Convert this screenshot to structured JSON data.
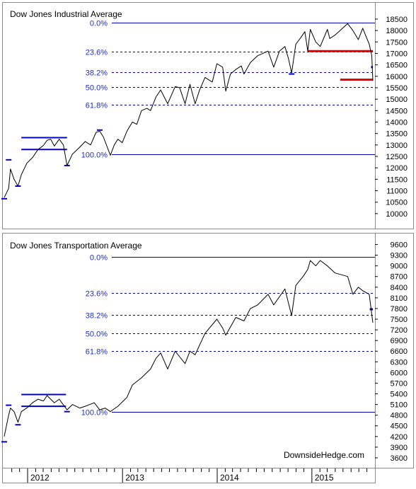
{
  "chart_data": [
    {
      "type": "line",
      "title": "Dow Jones Industrial Average",
      "ylim": [
        9500,
        18900
      ],
      "y_ticks": [
        10000,
        10500,
        11000,
        11500,
        12000,
        12500,
        13000,
        13500,
        14000,
        14500,
        15000,
        15500,
        16000,
        16500,
        17000,
        17500,
        18000,
        18500
      ],
      "grid": false,
      "series": [
        {
          "x": [
            "2011-10-03",
            "2011-10-20",
            "2011-10-27",
            "2011-11-10",
            "2011-11-25",
            "2011-12-08",
            "2011-12-29",
            "2012-01-20",
            "2012-02-10",
            "2012-03-02",
            "2012-03-16",
            "2012-03-30",
            "2012-04-13",
            "2012-05-02",
            "2012-05-18",
            "2012-06-01",
            "2012-06-22",
            "2012-07-20",
            "2012-08-10",
            "2012-08-31",
            "2012-09-21",
            "2012-10-05",
            "2012-10-19",
            "2012-11-15",
            "2012-11-30",
            "2012-12-14",
            "2012-12-31",
            "2013-01-18",
            "2013-02-08",
            "2013-02-25",
            "2013-03-15",
            "2013-04-05",
            "2013-04-19",
            "2013-05-10",
            "2013-05-28",
            "2013-06-24",
            "2013-07-23",
            "2013-08-09",
            "2013-08-30",
            "2013-09-18",
            "2013-10-08",
            "2013-10-25",
            "2013-11-15",
            "2013-12-13",
            "2013-12-31",
            "2014-01-22",
            "2014-02-03",
            "2014-02-21",
            "2014-03-14",
            "2014-04-04",
            "2014-04-14",
            "2014-05-09",
            "2014-06-06",
            "2014-07-16",
            "2014-08-07",
            "2014-08-29",
            "2014-09-19",
            "2014-10-02",
            "2014-10-15",
            "2014-10-31",
            "2014-11-20",
            "2014-12-05",
            "2014-12-16",
            "2014-12-26",
            "2015-01-16",
            "2015-02-02",
            "2015-03-02",
            "2015-03-11",
            "2015-03-31",
            "2015-05-19",
            "2015-06-08",
            "2015-06-29",
            "2015-07-16",
            "2015-08-10",
            "2015-08-20",
            "2015-08-24"
          ],
          "values": [
            10700,
            11100,
            11950,
            11500,
            11200,
            11700,
            12200,
            12450,
            12800,
            12980,
            13200,
            13250,
            12950,
            13250,
            13000,
            12100,
            12600,
            12900,
            13150,
            13000,
            13550,
            13600,
            13350,
            12550,
            13000,
            13250,
            13100,
            13600,
            14000,
            13900,
            14500,
            14600,
            14500,
            15100,
            15400,
            14800,
            15550,
            15500,
            14800,
            15650,
            14800,
            15400,
            15950,
            15750,
            16550,
            16400,
            15350,
            16100,
            16300,
            16450,
            16100,
            16600,
            16900,
            17100,
            16400,
            17100,
            17300,
            16800,
            16150,
            17400,
            17700,
            17950,
            17100,
            18050,
            17500,
            17300,
            18050,
            17650,
            17800,
            18300,
            18000,
            17600,
            18100,
            17400,
            16900,
            15800
          ]
        }
      ],
      "fibonacci": [
        {
          "label": "0.0%",
          "value": 18350
        },
        {
          "label": "23.6%",
          "value": 17070
        },
        {
          "label": "38.2%",
          "value": 16180
        },
        {
          "label": "50.0%",
          "value": 15520
        },
        {
          "label": "61.8%",
          "value": 14770
        },
        {
          "label": "100.0%",
          "value": 12600
        }
      ]
    },
    {
      "type": "line",
      "title": "Dow Jones Transportation Average",
      "ylim": [
        3400,
        9750
      ],
      "y_ticks": [
        3600,
        3900,
        4200,
        4500,
        4800,
        5100,
        5400,
        5700,
        6000,
        6300,
        6600,
        6900,
        7200,
        7500,
        7800,
        8100,
        8400,
        8700,
        9000,
        9300,
        9600
      ],
      "grid": false,
      "series": [
        {
          "x": [
            "2011-10-03",
            "2011-10-20",
            "2011-10-27",
            "2011-11-10",
            "2011-11-25",
            "2011-12-08",
            "2011-12-29",
            "2012-01-20",
            "2012-02-10",
            "2012-03-02",
            "2012-03-16",
            "2012-04-13",
            "2012-05-02",
            "2012-06-01",
            "2012-06-22",
            "2012-07-20",
            "2012-08-10",
            "2012-09-14",
            "2012-10-05",
            "2012-10-26",
            "2012-11-15",
            "2012-12-14",
            "2013-01-18",
            "2013-02-08",
            "2013-03-15",
            "2013-04-19",
            "2013-05-10",
            "2013-05-28",
            "2013-06-24",
            "2013-07-23",
            "2013-08-30",
            "2013-09-18",
            "2013-10-08",
            "2013-11-15",
            "2013-12-31",
            "2014-01-22",
            "2014-02-03",
            "2014-03-14",
            "2014-04-14",
            "2014-05-09",
            "2014-06-06",
            "2014-07-16",
            "2014-08-07",
            "2014-09-19",
            "2014-10-15",
            "2014-10-31",
            "2014-11-28",
            "2014-12-16",
            "2014-12-26",
            "2015-01-16",
            "2015-02-02",
            "2015-03-02",
            "2015-03-31",
            "2015-05-19",
            "2015-06-08",
            "2015-06-29",
            "2015-07-16",
            "2015-08-10",
            "2015-08-24"
          ],
          "values": [
            4200,
            4800,
            5000,
            4900,
            4600,
            4900,
            5000,
            5150,
            5250,
            5200,
            5350,
            5150,
            5250,
            4950,
            5100,
            5000,
            5050,
            5150,
            4950,
            5000,
            4900,
            5050,
            5300,
            5650,
            5850,
            6100,
            6400,
            6550,
            6100,
            6600,
            6250,
            6600,
            6500,
            7100,
            7500,
            7250,
            7050,
            7550,
            7450,
            7800,
            7900,
            8200,
            7900,
            8350,
            7600,
            8450,
            8700,
            8900,
            9150,
            9000,
            9150,
            9000,
            8800,
            8700,
            8200,
            8400,
            8300,
            8200,
            7400
          ]
        }
      ],
      "fibonacci": [
        {
          "label": "0.0%",
          "value": 9250
        },
        {
          "label": "23.6%",
          "value": 8240
        },
        {
          "label": "38.2%",
          "value": 7620
        },
        {
          "label": "50.0%",
          "value": 7110
        },
        {
          "label": "61.8%",
          "value": 6610
        },
        {
          "label": "100.0%",
          "value": 4900
        }
      ]
    }
  ],
  "x_axis": {
    "year_labels": [
      "2012",
      "2013",
      "2014",
      "2015"
    ]
  },
  "watermark": "DownsideHedge.com",
  "colors": {
    "fib_line": "#0000aa",
    "fib_label": "#1a2be0",
    "annotation_blue": "#0000cc",
    "annotation_red": "#e00000",
    "price_line": "#000000",
    "frame": "#8a8a8a"
  }
}
